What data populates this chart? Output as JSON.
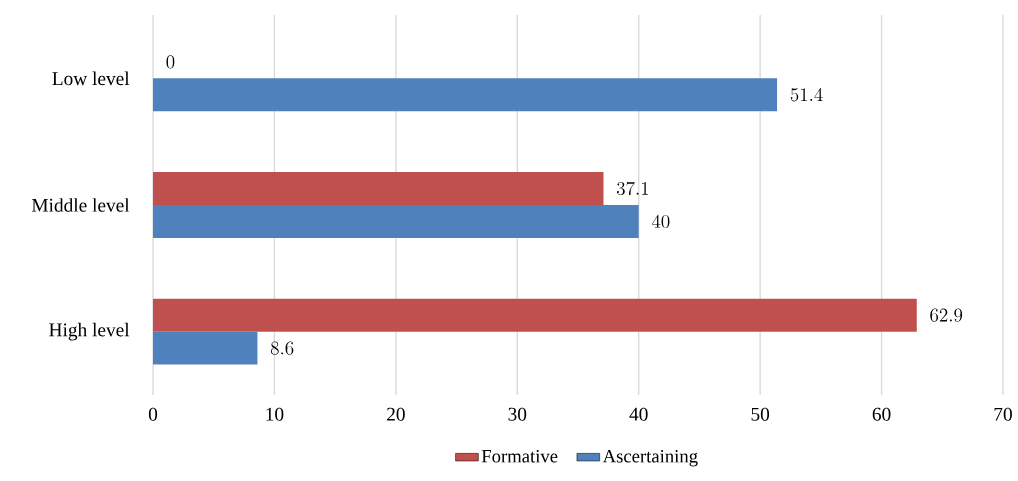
{
  "chart_data": {
    "type": "bar",
    "orientation": "horizontal",
    "categories": [
      "Low level",
      "Middle level",
      "High level"
    ],
    "series": [
      {
        "name": "Formative",
        "color": "#c0504d",
        "values": [
          0,
          37.1,
          62.9
        ]
      },
      {
        "name": "Ascertaining",
        "color": "#4f81bd",
        "values": [
          51.4,
          40,
          8.6
        ]
      }
    ],
    "xlim": [
      0,
      70
    ],
    "xticks": [
      0,
      10,
      20,
      30,
      40,
      50,
      60,
      70
    ],
    "grid": "x",
    "legend": "bottom",
    "data_labels": true
  }
}
